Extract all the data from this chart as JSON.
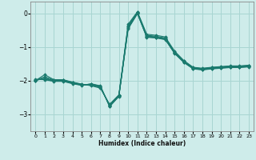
{
  "xlabel": "Humidex (Indice chaleur)",
  "background_color": "#ceecea",
  "grid_color": "#a8d5d2",
  "line_color": "#1a7a6e",
  "x": [
    0,
    1,
    2,
    3,
    4,
    5,
    6,
    7,
    8,
    9,
    10,
    11,
    12,
    13,
    14,
    15,
    16,
    17,
    18,
    19,
    20,
    21,
    22,
    23
  ],
  "series": [
    [
      -2.0,
      -1.82,
      -1.97,
      -1.97,
      -2.04,
      -2.1,
      -2.15,
      -2.22,
      -2.7,
      -2.42,
      -0.32,
      0.05,
      -0.62,
      -0.65,
      -0.7,
      -1.12,
      -1.4,
      -1.6,
      -1.63,
      -1.6,
      -1.58,
      -1.56,
      -1.56,
      -1.54
    ],
    [
      -2.0,
      -1.88,
      -1.98,
      -1.98,
      -2.05,
      -2.11,
      -2.13,
      -2.2,
      -2.72,
      -2.43,
      -0.36,
      0.03,
      -0.65,
      -0.68,
      -0.73,
      -1.14,
      -1.42,
      -1.61,
      -1.64,
      -1.61,
      -1.59,
      -1.57,
      -1.57,
      -1.55
    ],
    [
      -2.0,
      -1.92,
      -1.99,
      -1.99,
      -2.06,
      -2.12,
      -2.12,
      -2.19,
      -2.74,
      -2.44,
      -0.39,
      0.02,
      -0.67,
      -0.7,
      -0.75,
      -1.16,
      -1.43,
      -1.62,
      -1.65,
      -1.62,
      -1.6,
      -1.58,
      -1.58,
      -1.56
    ],
    [
      -1.98,
      -1.94,
      -2.0,
      -2.0,
      -2.07,
      -2.12,
      -2.11,
      -2.17,
      -2.75,
      -2.45,
      -0.42,
      0.01,
      -0.69,
      -0.71,
      -0.76,
      -1.17,
      -1.44,
      -1.63,
      -1.66,
      -1.63,
      -1.61,
      -1.59,
      -1.59,
      -1.57
    ],
    [
      -1.97,
      -1.96,
      -2.01,
      -2.01,
      -2.08,
      -2.13,
      -2.1,
      -2.16,
      -2.76,
      -2.46,
      -0.44,
      0.0,
      -0.7,
      -0.72,
      -0.77,
      -1.18,
      -1.45,
      -1.64,
      -1.67,
      -1.64,
      -1.62,
      -1.6,
      -1.6,
      -1.58
    ],
    [
      -1.96,
      -1.97,
      -2.02,
      -2.02,
      -2.09,
      -2.14,
      -2.09,
      -2.15,
      -2.77,
      -2.47,
      -0.46,
      -0.01,
      -0.71,
      -0.73,
      -0.78,
      -1.19,
      -1.46,
      -1.65,
      -1.68,
      -1.65,
      -1.63,
      -1.61,
      -1.61,
      -1.59
    ]
  ],
  "ylim": [
    -3.5,
    0.35
  ],
  "xlim": [
    -0.5,
    23.5
  ],
  "yticks": [
    0,
    -1,
    -2,
    -3
  ],
  "xticks": [
    0,
    1,
    2,
    3,
    4,
    5,
    6,
    7,
    8,
    9,
    10,
    11,
    12,
    13,
    14,
    15,
    16,
    17,
    18,
    19,
    20,
    21,
    22,
    23
  ]
}
